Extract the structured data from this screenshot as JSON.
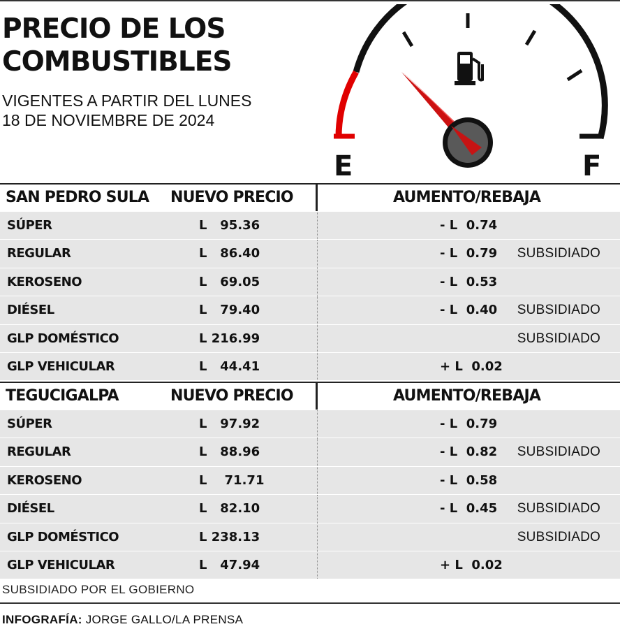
{
  "header": {
    "title_line1": "PRECIO DE LOS",
    "title_line2": "COMBUSTIBLES",
    "subtitle_line1": "VIGENTES A PARTIR DEL LUNES",
    "subtitle_line2": "18 DE NOVIEMBRE DE 2024"
  },
  "gauge": {
    "empty_label": "E",
    "full_label": "F",
    "icon": "fuel-pump-icon",
    "colors": {
      "arc": "#111111",
      "low_zone": "#e00000",
      "needle": "#cc1111",
      "hub": "#555555"
    }
  },
  "tables": [
    {
      "city": "SAN PEDRO SULA",
      "price_header": "NUEVO PRECIO",
      "change_header": "AUMENTO/REBAJA",
      "rows": [
        {
          "name": "SÚPER",
          "price": "L   95.36",
          "change": "- L  0.74",
          "note": ""
        },
        {
          "name": "REGULAR",
          "price": "L   86.40",
          "change": "- L  0.79",
          "note": "SUBSIDIADO"
        },
        {
          "name": "KEROSENO",
          "price": "L   69.05",
          "change": "- L  0.53",
          "note": ""
        },
        {
          "name": "DIÉSEL",
          "price": "L   79.40",
          "change": "- L  0.40",
          "note": "SUBSIDIADO"
        },
        {
          "name": "GLP DOMÉSTICO",
          "price": "L 216.99",
          "change": "",
          "note": "SUBSIDIADO"
        },
        {
          "name": "GLP VEHICULAR",
          "price": "L   44.41",
          "change": "+ L  0.02",
          "note": ""
        }
      ]
    },
    {
      "city": "TEGUCIGALPA",
      "price_header": "NUEVO PRECIO",
      "change_header": "AUMENTO/REBAJA",
      "rows": [
        {
          "name": "SÚPER",
          "price": "L   97.92",
          "change": "- L  0.79",
          "note": ""
        },
        {
          "name": "REGULAR",
          "price": "L   88.96",
          "change": "- L  0.82",
          "note": "SUBSIDIADO"
        },
        {
          "name": "KEROSENO",
          "price": "L    71.71",
          "change": "- L  0.58",
          "note": ""
        },
        {
          "name": "DIÉSEL",
          "price": "L   82.10",
          "change": "- L  0.45",
          "note": "SUBSIDIADO"
        },
        {
          "name": "GLP DOMÉSTICO",
          "price": "L 238.13",
          "change": "",
          "note": "SUBSIDIADO"
        },
        {
          "name": "GLP VEHICULAR",
          "price": "L   47.94",
          "change": "+ L  0.02",
          "note": ""
        }
      ]
    }
  ],
  "footer": {
    "footnote": "SUBSIDIADO POR EL GOBIERNO",
    "credit_label": "INFOGRAFÍA:",
    "credit_value": " JORGE GALLO/LA PRENSA"
  }
}
